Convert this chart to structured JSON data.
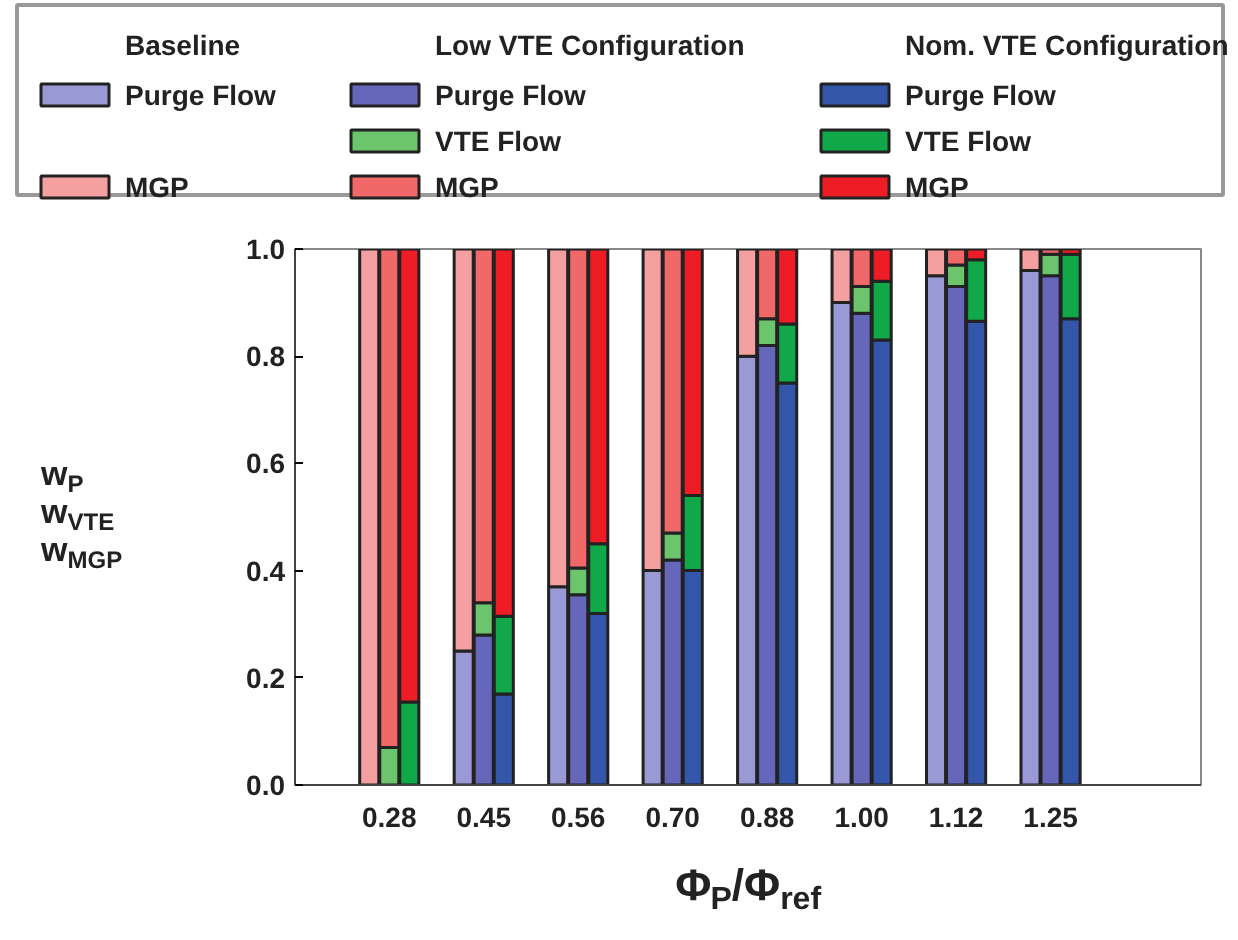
{
  "chart_data": {
    "type": "bar",
    "stacked": true,
    "xlabel": "Φ$_{P}$/Φ$_{ref}$",
    "ylabel": "w$_{P}$\nw$_{VTE}$\nw$_{MGP}$",
    "categories": [
      null,
      "0.28",
      null,
      null,
      "0.45",
      null,
      null,
      "0.56",
      null,
      null,
      "0.70",
      null,
      null,
      "0.88",
      null,
      null,
      "1.00",
      null,
      null,
      "1.12",
      null,
      null,
      "1.25",
      null
    ],
    "ylim": [
      0,
      1
    ],
    "yticks": [
      {
        "value": 0,
        "label": "0.0"
      },
      {
        "value": 0.2,
        "label": "0.2"
      },
      {
        "value": 0.4,
        "label": "0.4"
      },
      {
        "value": 0.6,
        "label": "0.6"
      },
      {
        "value": 0.8,
        "label": "0.8"
      },
      {
        "value": 1,
        "label": "1.0"
      }
    ],
    "legend": "top",
    "annotations": [
      "Baseline",
      "Low VTE Configuration",
      "Nom. VTE Configuration"
    ],
    "series": [
      {
        "name": "Purge Flow",
        "color": "#9999d6",
        "values": [
          0,
          null,
          null,
          0.25,
          null,
          null,
          0.37,
          null,
          null,
          0.4,
          null,
          null,
          0.8,
          null,
          null,
          0.9,
          null,
          null,
          0.95,
          null,
          null,
          0.96,
          null,
          null
        ]
      },
      {
        "name": "MGP",
        "color": "#f5a0a0",
        "values": [
          1,
          null,
          null,
          0.75,
          null,
          null,
          0.63,
          null,
          null,
          0.6,
          null,
          null,
          0.2,
          null,
          null,
          0.1,
          null,
          null,
          0.05,
          null,
          null,
          0.04,
          null,
          null
        ]
      },
      {
        "name": "Purge Flow",
        "color": "#6666bb",
        "values": [
          null,
          0,
          null,
          null,
          0.28,
          null,
          null,
          0.355,
          null,
          null,
          0.42,
          null,
          null,
          0.82,
          null,
          null,
          0.88,
          null,
          null,
          0.93,
          null,
          null,
          0.95,
          null
        ]
      },
      {
        "name": "VTE Flow",
        "color": "#6cc46c",
        "values": [
          null,
          0.07,
          null,
          null,
          0.06,
          null,
          null,
          0.05,
          null,
          null,
          0.05,
          null,
          null,
          0.05,
          null,
          null,
          0.05,
          null,
          null,
          0.04,
          null,
          null,
          0.04,
          null
        ]
      },
      {
        "name": "MGP",
        "color": "#f06868",
        "values": [
          null,
          0.93,
          null,
          null,
          0.66,
          null,
          null,
          0.595,
          null,
          null,
          0.53,
          null,
          null,
          0.13,
          null,
          null,
          0.07,
          null,
          null,
          0.03,
          null,
          null,
          0.01,
          null
        ]
      },
      {
        "name": "Purge Flow",
        "color": "#3355aa",
        "values": [
          null,
          null,
          0,
          null,
          null,
          0.17,
          null,
          null,
          0.32,
          null,
          null,
          0.4,
          null,
          null,
          0.75,
          null,
          null,
          0.83,
          null,
          null,
          0.865,
          null,
          null,
          0.87
        ]
      },
      {
        "name": "VTE Flow",
        "color": "#11a84a",
        "values": [
          null,
          null,
          0.155,
          null,
          null,
          0.145,
          null,
          null,
          0.13,
          null,
          null,
          0.14,
          null,
          null,
          0.11,
          null,
          null,
          0.11,
          null,
          null,
          0.115,
          null,
          null,
          0.12
        ]
      },
      {
        "name": "MGP",
        "color": "#ee1c24",
        "values": [
          null,
          null,
          0.845,
          null,
          null,
          0.685,
          null,
          null,
          0.55,
          null,
          null,
          0.46,
          null,
          null,
          0.14,
          null,
          null,
          0.06,
          null,
          null,
          0.02,
          null,
          null,
          0.01
        ]
      }
    ]
  }
}
